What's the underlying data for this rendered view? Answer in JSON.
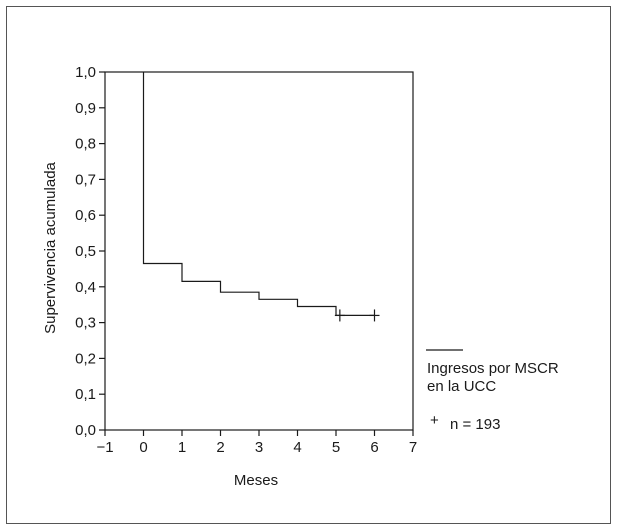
{
  "chart_data": {
    "type": "line",
    "title": "",
    "xlabel": "Meses",
    "ylabel": "Supervivencia acumulada",
    "xlim": [
      -1,
      7
    ],
    "ylim": [
      0.0,
      1.0
    ],
    "x_ticks": [
      -1,
      0,
      1,
      2,
      3,
      4,
      5,
      6,
      7
    ],
    "y_ticks": [
      "0,0",
      "0,1",
      "0,2",
      "0,3",
      "0,4",
      "0,5",
      "0,6",
      "0,7",
      "0,8",
      "0,9",
      "1,0"
    ],
    "x_tick_labels": [
      "−1",
      "0",
      "1",
      "2",
      "3",
      "4",
      "5",
      "6",
      "7"
    ],
    "grid": false,
    "legend_position": "right",
    "series": [
      {
        "name": "Ingresos por MSCR en la UCC",
        "step_points": [
          {
            "x": 0,
            "y": 1.0
          },
          {
            "x": 0,
            "y": 0.465
          },
          {
            "x": 1,
            "y": 0.465
          },
          {
            "x": 1,
            "y": 0.415
          },
          {
            "x": 2,
            "y": 0.415
          },
          {
            "x": 2,
            "y": 0.385
          },
          {
            "x": 3,
            "y": 0.385
          },
          {
            "x": 3,
            "y": 0.365
          },
          {
            "x": 4,
            "y": 0.365
          },
          {
            "x": 4,
            "y": 0.345
          },
          {
            "x": 5,
            "y": 0.345
          },
          {
            "x": 5,
            "y": 0.32
          },
          {
            "x": 6.0,
            "y": 0.32
          }
        ],
        "censored": [
          {
            "x": 5.1,
            "y": 0.32
          },
          {
            "x": 6.0,
            "y": 0.32
          }
        ],
        "color": "#1a1a1a"
      }
    ],
    "legend": {
      "line_label_1": "Ingresos por MSCR",
      "line_label_2": "en la UCC",
      "censor_symbol": "+",
      "censor_label": "n = 193"
    }
  }
}
